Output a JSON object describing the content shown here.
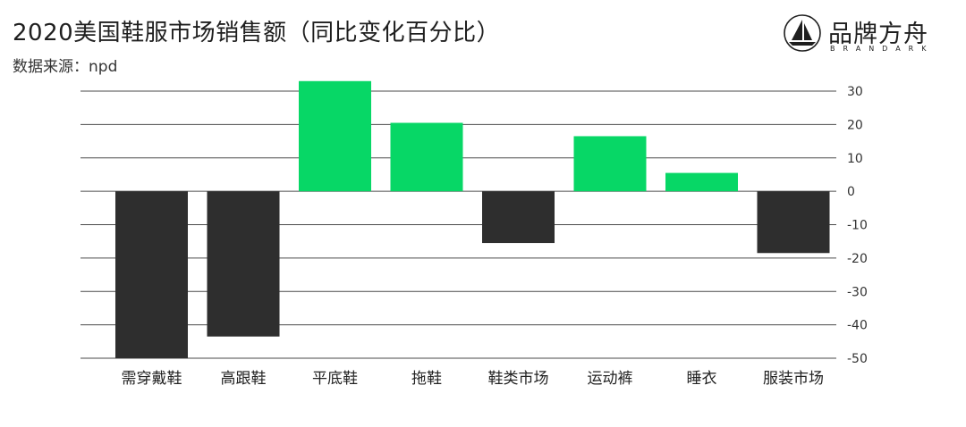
{
  "header": {
    "title": "2020美国鞋服市场销售额（同比变化百分比）",
    "source": "数据来源：npd"
  },
  "brand": {
    "name": "品牌方舟",
    "sub": "BRANDARK",
    "icon": "sailboat-icon"
  },
  "colors": {
    "positive": "#07d766",
    "negative": "#2e2e2e",
    "grid": "#4a4a4a"
  },
  "chart_data": {
    "type": "bar",
    "categories": [
      "需穿戴鞋",
      "高跟鞋",
      "平底鞋",
      "拖鞋",
      "鞋类市场",
      "运动裤",
      "睡衣",
      "服装市场"
    ],
    "values": [
      -50,
      -43.5,
      33,
      20.5,
      -15.5,
      16.5,
      5.5,
      -18.5
    ],
    "ylim": [
      -50,
      30
    ],
    "yticks": [
      30,
      20,
      10,
      0,
      -10,
      -20,
      -30,
      -40,
      -50
    ],
    "ytick_labels": [
      "30",
      "20",
      "10",
      "0",
      "-10",
      "-20",
      "-30",
      "-40",
      "-50"
    ],
    "grid": true,
    "y_axis_position": "right"
  }
}
